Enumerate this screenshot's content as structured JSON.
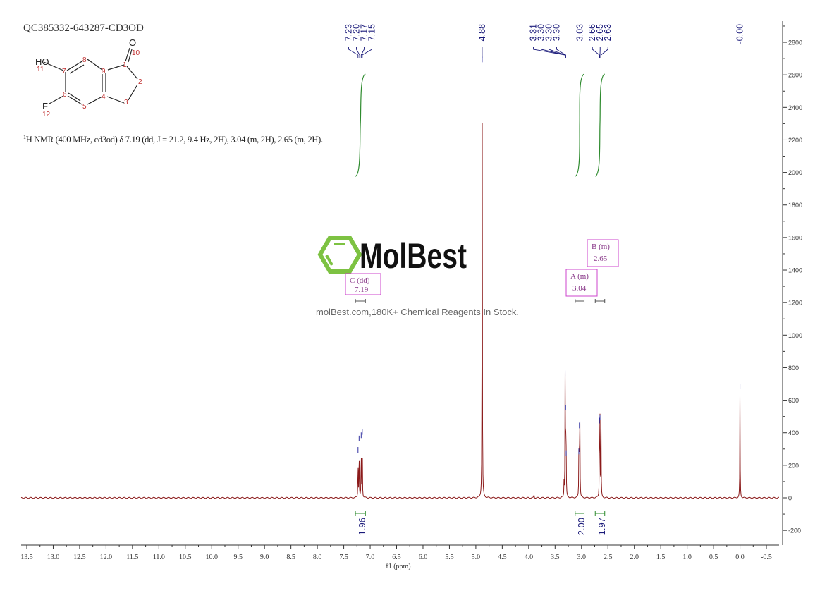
{
  "title": "QC385332-643287-CD3OD",
  "description": {
    "sup": "1",
    "text": "H NMR (400 MHz, cd3od) δ 7.19 (dd, J = 21.2, 9.4 Hz, 2H), 3.04 (m, 2H), 2.65 (m, 2H)."
  },
  "molecule": {
    "atoms": [
      {
        "label": "HO",
        "num": "11"
      },
      {
        "label": "F",
        "num": "12"
      },
      {
        "label": "O",
        "num": "10"
      }
    ],
    "numbers": [
      "1",
      "2",
      "3",
      "4",
      "5",
      "6",
      "7",
      "8",
      "9"
    ]
  },
  "watermark": {
    "brand": "MolBest",
    "tagline": "molBest.com,180K+ Chemical Reagents In Stock.",
    "color": "#7dc242"
  },
  "colors": {
    "spectrum": "#8b1a1a",
    "peak_labels": "#1a1a7a",
    "integral": "#2e8b2e",
    "multiplet_box": "#cc44cc",
    "axis": "#333333"
  },
  "chart_data": {
    "type": "line",
    "xlabel": "f1 (ppm)",
    "xlim": [
      13.5,
      -0.5
    ],
    "ylim": [
      -250,
      2900
    ],
    "x_ticks": [
      "13.5",
      "13.0",
      "12.5",
      "12.0",
      "11.5",
      "11.0",
      "10.5",
      "10.0",
      "9.5",
      "9.0",
      "8.5",
      "8.0",
      "7.5",
      "7.0",
      "6.5",
      "6.0",
      "5.5",
      "5.0",
      "4.5",
      "4.0",
      "3.5",
      "3.0",
      "2.5",
      "2.0",
      "1.5",
      "1.0",
      "0.5",
      "0.0",
      "-0.5"
    ],
    "y_ticks": [
      "-200",
      "0",
      "200",
      "400",
      "600",
      "800",
      "1000",
      "1200",
      "1400",
      "1600",
      "1800",
      "2000",
      "2200",
      "2400",
      "2600",
      "2800"
    ],
    "peaks": [
      {
        "ppm": 7.23,
        "height": 260
      },
      {
        "ppm": 7.21,
        "height": 330
      },
      {
        "ppm": 7.17,
        "height": 350
      },
      {
        "ppm": 7.15,
        "height": 370
      },
      {
        "ppm": 4.88,
        "height": 2660
      },
      {
        "ppm": 3.9,
        "height": 25
      },
      {
        "ppm": 3.33,
        "height": 90
      },
      {
        "ppm": 3.31,
        "height": 730
      },
      {
        "ppm": 3.3,
        "height": 520
      },
      {
        "ppm": 3.29,
        "height": 240
      },
      {
        "ppm": 3.04,
        "height": 410
      },
      {
        "ppm": 3.03,
        "height": 420
      },
      {
        "ppm": 3.05,
        "height": 250
      },
      {
        "ppm": 2.66,
        "height": 440
      },
      {
        "ppm": 2.65,
        "height": 460
      },
      {
        "ppm": 2.63,
        "height": 410
      },
      {
        "ppm": 0.0,
        "height": 650
      }
    ],
    "peak_labels": [
      {
        "group": [
          "7.23",
          "7.20",
          "7.17",
          "7.15"
        ],
        "ppm": [
          7.23,
          7.2,
          7.17,
          7.15
        ]
      },
      {
        "group": [
          "4.88"
        ],
        "ppm": [
          4.88
        ]
      },
      {
        "group": [
          "3.31",
          "3.30",
          "3.30",
          "3.30"
        ],
        "ppm": [
          3.31,
          3.3,
          3.3,
          3.3
        ]
      },
      {
        "group": [
          "3.03"
        ],
        "ppm": [
          3.03
        ]
      },
      {
        "group": [
          "2.66",
          "2.65",
          "2.63"
        ],
        "ppm": [
          2.66,
          2.65,
          2.63
        ]
      },
      {
        "group": [
          "-0.00"
        ],
        "ppm": [
          0.0
        ]
      }
    ],
    "integrals": [
      {
        "from": 7.28,
        "to": 7.09,
        "value": "1.96"
      },
      {
        "from": 3.12,
        "to": 2.95,
        "value": "2.00"
      },
      {
        "from": 2.74,
        "to": 2.56,
        "value": "1.97"
      }
    ],
    "multiplets": [
      {
        "label": "C (dd)",
        "shift": "7.19",
        "from": 7.28,
        "to": 7.09
      },
      {
        "label": "A (m)",
        "shift": "3.04",
        "from": 3.12,
        "to": 2.95
      },
      {
        "label": "B (m)",
        "shift": "2.65",
        "from": 2.74,
        "to": 2.56
      }
    ]
  }
}
